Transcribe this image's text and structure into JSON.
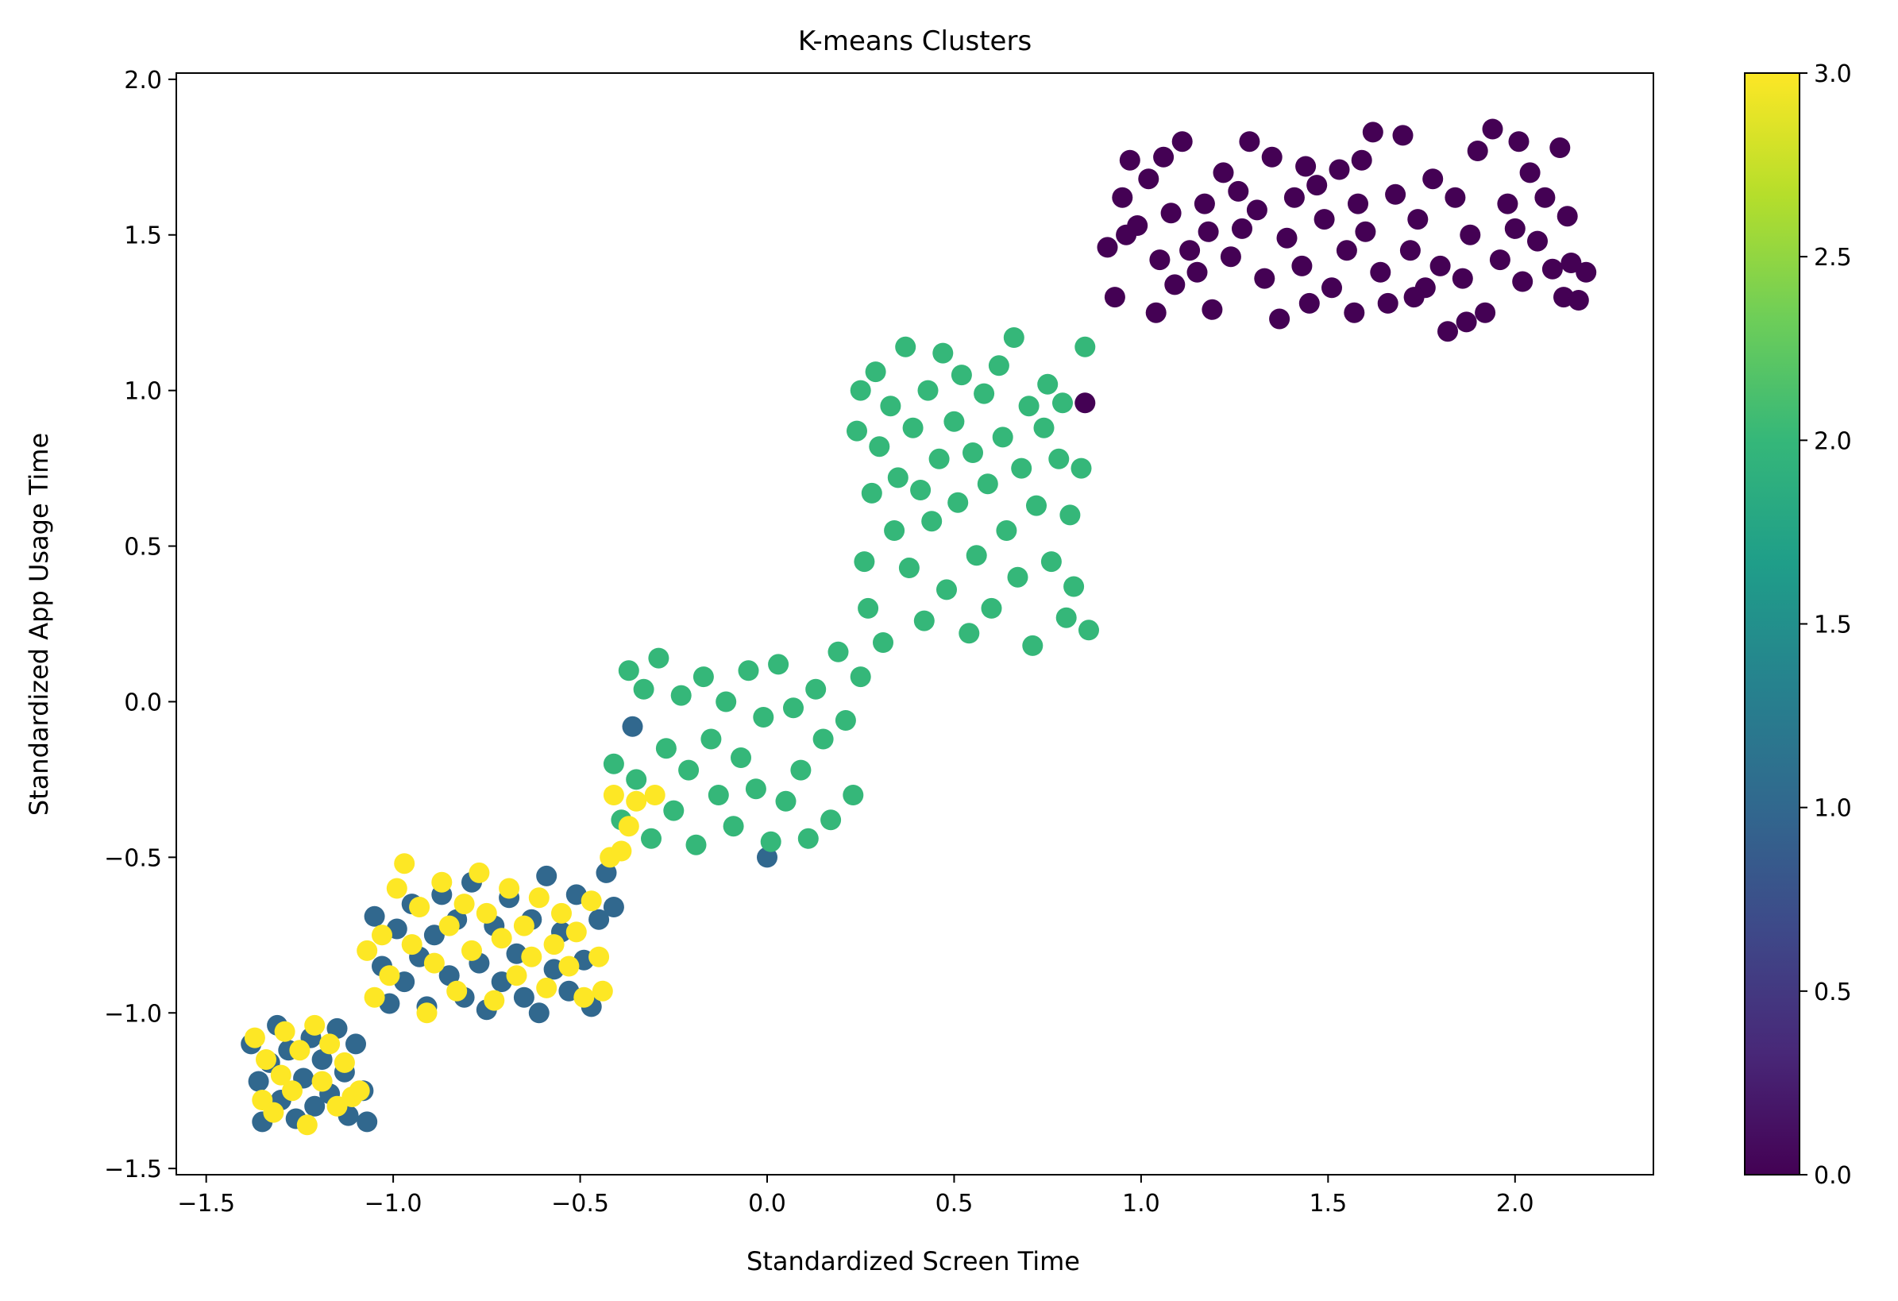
{
  "chart_data": {
    "type": "scatter",
    "title": "K-means Clusters",
    "xlabel": "Standardized Screen Time",
    "ylabel": "Standardized App Usage Time",
    "xlim": [
      -1.58,
      2.37
    ],
    "ylim": [
      -1.52,
      2.02
    ],
    "xticks": [
      {
        "value": -1.5,
        "label": "−1.5"
      },
      {
        "value": -1.0,
        "label": "−1.0"
      },
      {
        "value": -0.5,
        "label": "−0.5"
      },
      {
        "value": 0.0,
        "label": "0.0"
      },
      {
        "value": 0.5,
        "label": "0.5"
      },
      {
        "value": 1.0,
        "label": "1.0"
      },
      {
        "value": 1.5,
        "label": "1.5"
      },
      {
        "value": 2.0,
        "label": "2.0"
      }
    ],
    "yticks": [
      {
        "value": -1.5,
        "label": "−1.5"
      },
      {
        "value": -1.0,
        "label": "−1.0"
      },
      {
        "value": -0.5,
        "label": "−0.5"
      },
      {
        "value": 0.0,
        "label": "0.0"
      },
      {
        "value": 0.5,
        "label": "0.5"
      },
      {
        "value": 1.0,
        "label": "1.0"
      },
      {
        "value": 1.5,
        "label": "1.5"
      },
      {
        "value": 2.0,
        "label": "2.0"
      }
    ],
    "colorbar": {
      "colormap": "viridis",
      "range": [
        0,
        3
      ],
      "ticks": [
        {
          "value": 0.0,
          "label": "0.0"
        },
        {
          "value": 0.5,
          "label": "0.5"
        },
        {
          "value": 1.0,
          "label": "1.0"
        },
        {
          "value": 1.5,
          "label": "1.5"
        },
        {
          "value": 2.0,
          "label": "2.0"
        },
        {
          "value": 2.5,
          "label": "2.5"
        },
        {
          "value": 3.0,
          "label": "3.0"
        }
      ],
      "stops": [
        "#440154",
        "#482878",
        "#3e4989",
        "#31688e",
        "#26828e",
        "#1f9e89",
        "#35b779",
        "#6ece58",
        "#b5de2b",
        "#fde725"
      ]
    },
    "cluster_colors": {
      "0": "#440154",
      "1": "#31688e",
      "2": "#35b779",
      "3": "#fde725"
    },
    "grid": false,
    "series": [
      {
        "cluster": 0,
        "points": [
          [
            0.91,
            1.46
          ],
          [
            0.93,
            1.3
          ],
          [
            0.95,
            1.62
          ],
          [
            0.97,
            1.74
          ],
          [
            0.99,
            1.53
          ],
          [
            1.02,
            1.68
          ],
          [
            1.04,
            1.25
          ],
          [
            1.06,
            1.75
          ],
          [
            1.08,
            1.57
          ],
          [
            1.09,
            1.34
          ],
          [
            1.11,
            1.8
          ],
          [
            1.13,
            1.45
          ],
          [
            1.15,
            1.38
          ],
          [
            1.17,
            1.6
          ],
          [
            1.19,
            1.26
          ],
          [
            1.22,
            1.7
          ],
          [
            1.24,
            1.43
          ],
          [
            1.27,
            1.52
          ],
          [
            1.29,
            1.8
          ],
          [
            1.31,
            1.58
          ],
          [
            1.33,
            1.36
          ],
          [
            1.35,
            1.75
          ],
          [
            1.37,
            1.23
          ],
          [
            1.39,
            1.49
          ],
          [
            1.41,
            1.62
          ],
          [
            1.43,
            1.4
          ],
          [
            1.45,
            1.28
          ],
          [
            1.47,
            1.66
          ],
          [
            1.49,
            1.55
          ],
          [
            1.51,
            1.33
          ],
          [
            1.53,
            1.71
          ],
          [
            1.55,
            1.45
          ],
          [
            1.57,
            1.25
          ],
          [
            1.58,
            1.6
          ],
          [
            1.6,
            1.51
          ],
          [
            1.62,
            1.83
          ],
          [
            1.64,
            1.38
          ],
          [
            1.66,
            1.28
          ],
          [
            1.68,
            1.63
          ],
          [
            1.7,
            1.82
          ],
          [
            1.72,
            1.45
          ],
          [
            1.74,
            1.55
          ],
          [
            1.76,
            1.33
          ],
          [
            1.78,
            1.68
          ],
          [
            1.8,
            1.4
          ],
          [
            1.82,
            1.19
          ],
          [
            1.84,
            1.62
          ],
          [
            1.86,
            1.36
          ],
          [
            1.88,
            1.5
          ],
          [
            1.9,
            1.77
          ],
          [
            1.92,
            1.25
          ],
          [
            1.94,
            1.84
          ],
          [
            1.96,
            1.42
          ],
          [
            1.98,
            1.6
          ],
          [
            2.0,
            1.52
          ],
          [
            2.02,
            1.35
          ],
          [
            2.04,
            1.7
          ],
          [
            2.06,
            1.48
          ],
          [
            2.08,
            1.62
          ],
          [
            2.1,
            1.39
          ],
          [
            2.12,
            1.78
          ],
          [
            2.13,
            1.3
          ],
          [
            2.14,
            1.56
          ],
          [
            2.15,
            1.41
          ],
          [
            2.17,
            1.29
          ],
          [
            2.19,
            1.38
          ],
          [
            0.96,
            1.5
          ],
          [
            1.05,
            1.42
          ],
          [
            1.18,
            1.51
          ],
          [
            1.26,
            1.64
          ],
          [
            1.44,
            1.72
          ],
          [
            1.59,
            1.74
          ],
          [
            1.73,
            1.3
          ],
          [
            1.87,
            1.22
          ],
          [
            2.01,
            1.8
          ],
          [
            0.85,
            0.96
          ]
        ]
      },
      {
        "cluster": 1,
        "points": [
          [
            -1.38,
            -1.1
          ],
          [
            -1.36,
            -1.22
          ],
          [
            -1.35,
            -1.35
          ],
          [
            -1.33,
            -1.16
          ],
          [
            -1.31,
            -1.04
          ],
          [
            -1.3,
            -1.28
          ],
          [
            -1.28,
            -1.12
          ],
          [
            -1.26,
            -1.34
          ],
          [
            -1.24,
            -1.21
          ],
          [
            -1.22,
            -1.08
          ],
          [
            -1.21,
            -1.3
          ],
          [
            -1.19,
            -1.15
          ],
          [
            -1.17,
            -1.26
          ],
          [
            -1.15,
            -1.05
          ],
          [
            -1.13,
            -1.19
          ],
          [
            -1.12,
            -1.33
          ],
          [
            -1.1,
            -1.1
          ],
          [
            -1.08,
            -1.25
          ],
          [
            -1.07,
            -1.35
          ],
          [
            -1.05,
            -0.69
          ],
          [
            -1.03,
            -0.85
          ],
          [
            -1.01,
            -0.97
          ],
          [
            -0.99,
            -0.73
          ],
          [
            -0.97,
            -0.9
          ],
          [
            -0.95,
            -0.65
          ],
          [
            -0.93,
            -0.82
          ],
          [
            -0.91,
            -0.98
          ],
          [
            -0.89,
            -0.75
          ],
          [
            -0.87,
            -0.62
          ],
          [
            -0.85,
            -0.88
          ],
          [
            -0.83,
            -0.7
          ],
          [
            -0.81,
            -0.95
          ],
          [
            -0.79,
            -0.58
          ],
          [
            -0.77,
            -0.84
          ],
          [
            -0.75,
            -0.99
          ],
          [
            -0.73,
            -0.72
          ],
          [
            -0.71,
            -0.9
          ],
          [
            -0.69,
            -0.63
          ],
          [
            -0.67,
            -0.81
          ],
          [
            -0.65,
            -0.95
          ],
          [
            -0.63,
            -0.7
          ],
          [
            -0.61,
            -1.0
          ],
          [
            -0.59,
            -0.56
          ],
          [
            -0.57,
            -0.86
          ],
          [
            -0.55,
            -0.74
          ],
          [
            -0.53,
            -0.93
          ],
          [
            -0.51,
            -0.62
          ],
          [
            -0.49,
            -0.83
          ],
          [
            -0.47,
            -0.98
          ],
          [
            -0.45,
            -0.7
          ],
          [
            -0.43,
            -0.55
          ],
          [
            -0.41,
            -0.66
          ],
          [
            -0.36,
            -0.08
          ],
          [
            0.0,
            -0.5
          ]
        ]
      },
      {
        "cluster": 2,
        "points": [
          [
            -0.41,
            -0.2
          ],
          [
            -0.39,
            -0.38
          ],
          [
            -0.37,
            0.1
          ],
          [
            -0.35,
            -0.25
          ],
          [
            -0.33,
            0.04
          ],
          [
            -0.31,
            -0.44
          ],
          [
            -0.29,
            0.14
          ],
          [
            -0.27,
            -0.15
          ],
          [
            -0.25,
            -0.35
          ],
          [
            -0.23,
            0.02
          ],
          [
            -0.21,
            -0.22
          ],
          [
            -0.19,
            -0.46
          ],
          [
            -0.17,
            0.08
          ],
          [
            -0.15,
            -0.12
          ],
          [
            -0.13,
            -0.3
          ],
          [
            -0.11,
            0.0
          ],
          [
            -0.09,
            -0.4
          ],
          [
            -0.07,
            -0.18
          ],
          [
            -0.05,
            0.1
          ],
          [
            -0.03,
            -0.28
          ],
          [
            -0.01,
            -0.05
          ],
          [
            0.01,
            -0.45
          ],
          [
            0.03,
            0.12
          ],
          [
            0.05,
            -0.32
          ],
          [
            0.07,
            -0.02
          ],
          [
            0.09,
            -0.22
          ],
          [
            0.11,
            -0.44
          ],
          [
            0.13,
            0.04
          ],
          [
            0.15,
            -0.12
          ],
          [
            0.17,
            -0.38
          ],
          [
            0.19,
            0.16
          ],
          [
            0.21,
            -0.06
          ],
          [
            0.23,
            -0.3
          ],
          [
            0.25,
            0.08
          ],
          [
            0.24,
            0.87
          ],
          [
            0.25,
            1.0
          ],
          [
            0.26,
            0.45
          ],
          [
            0.27,
            0.3
          ],
          [
            0.28,
            0.67
          ],
          [
            0.29,
            1.06
          ],
          [
            0.3,
            0.82
          ],
          [
            0.31,
            0.19
          ],
          [
            0.33,
            0.95
          ],
          [
            0.34,
            0.55
          ],
          [
            0.35,
            0.72
          ],
          [
            0.37,
            1.14
          ],
          [
            0.38,
            0.43
          ],
          [
            0.39,
            0.88
          ],
          [
            0.41,
            0.68
          ],
          [
            0.42,
            0.26
          ],
          [
            0.43,
            1.0
          ],
          [
            0.44,
            0.58
          ],
          [
            0.46,
            0.78
          ],
          [
            0.47,
            1.12
          ],
          [
            0.48,
            0.36
          ],
          [
            0.5,
            0.9
          ],
          [
            0.51,
            0.64
          ],
          [
            0.52,
            1.05
          ],
          [
            0.54,
            0.22
          ],
          [
            0.55,
            0.8
          ],
          [
            0.56,
            0.47
          ],
          [
            0.58,
            0.99
          ],
          [
            0.59,
            0.7
          ],
          [
            0.6,
            0.3
          ],
          [
            0.62,
            1.08
          ],
          [
            0.63,
            0.85
          ],
          [
            0.64,
            0.55
          ],
          [
            0.66,
            1.17
          ],
          [
            0.67,
            0.4
          ],
          [
            0.68,
            0.75
          ],
          [
            0.7,
            0.95
          ],
          [
            0.71,
            0.18
          ],
          [
            0.72,
            0.63
          ],
          [
            0.74,
            0.88
          ],
          [
            0.75,
            1.02
          ],
          [
            0.76,
            0.45
          ],
          [
            0.78,
            0.78
          ],
          [
            0.79,
            0.96
          ],
          [
            0.8,
            0.27
          ],
          [
            0.81,
            0.6
          ],
          [
            0.82,
            0.37
          ],
          [
            0.84,
            0.75
          ],
          [
            0.85,
            1.14
          ],
          [
            0.86,
            0.23
          ]
        ]
      },
      {
        "cluster": 3,
        "points": [
          [
            -1.37,
            -1.08
          ],
          [
            -1.35,
            -1.28
          ],
          [
            -1.34,
            -1.15
          ],
          [
            -1.32,
            -1.32
          ],
          [
            -1.3,
            -1.2
          ],
          [
            -1.29,
            -1.06
          ],
          [
            -1.27,
            -1.25
          ],
          [
            -1.25,
            -1.12
          ],
          [
            -1.23,
            -1.36
          ],
          [
            -1.21,
            -1.04
          ],
          [
            -1.19,
            -1.22
          ],
          [
            -1.17,
            -1.1
          ],
          [
            -1.15,
            -1.3
          ],
          [
            -1.13,
            -1.16
          ],
          [
            -1.11,
            -1.27
          ],
          [
            -1.09,
            -1.25
          ],
          [
            -1.07,
            -0.8
          ],
          [
            -1.05,
            -0.95
          ],
          [
            -1.03,
            -0.75
          ],
          [
            -1.01,
            -0.88
          ],
          [
            -0.99,
            -0.6
          ],
          [
            -0.97,
            -0.52
          ],
          [
            -0.95,
            -0.78
          ],
          [
            -0.93,
            -0.66
          ],
          [
            -0.91,
            -1.0
          ],
          [
            -0.89,
            -0.84
          ],
          [
            -0.87,
            -0.58
          ],
          [
            -0.85,
            -0.72
          ],
          [
            -0.83,
            -0.93
          ],
          [
            -0.81,
            -0.65
          ],
          [
            -0.79,
            -0.8
          ],
          [
            -0.77,
            -0.55
          ],
          [
            -0.75,
            -0.68
          ],
          [
            -0.73,
            -0.96
          ],
          [
            -0.71,
            -0.76
          ],
          [
            -0.69,
            -0.6
          ],
          [
            -0.67,
            -0.88
          ],
          [
            -0.65,
            -0.72
          ],
          [
            -0.63,
            -0.82
          ],
          [
            -0.61,
            -0.63
          ],
          [
            -0.59,
            -0.92
          ],
          [
            -0.57,
            -0.78
          ],
          [
            -0.55,
            -0.68
          ],
          [
            -0.53,
            -0.85
          ],
          [
            -0.51,
            -0.74
          ],
          [
            -0.49,
            -0.95
          ],
          [
            -0.47,
            -0.64
          ],
          [
            -0.45,
            -0.82
          ],
          [
            -0.44,
            -0.93
          ],
          [
            -0.42,
            -0.5
          ],
          [
            -0.41,
            -0.3
          ],
          [
            -0.39,
            -0.48
          ],
          [
            -0.37,
            -0.4
          ],
          [
            -0.35,
            -0.32
          ],
          [
            -0.3,
            -0.3
          ]
        ]
      }
    ]
  }
}
